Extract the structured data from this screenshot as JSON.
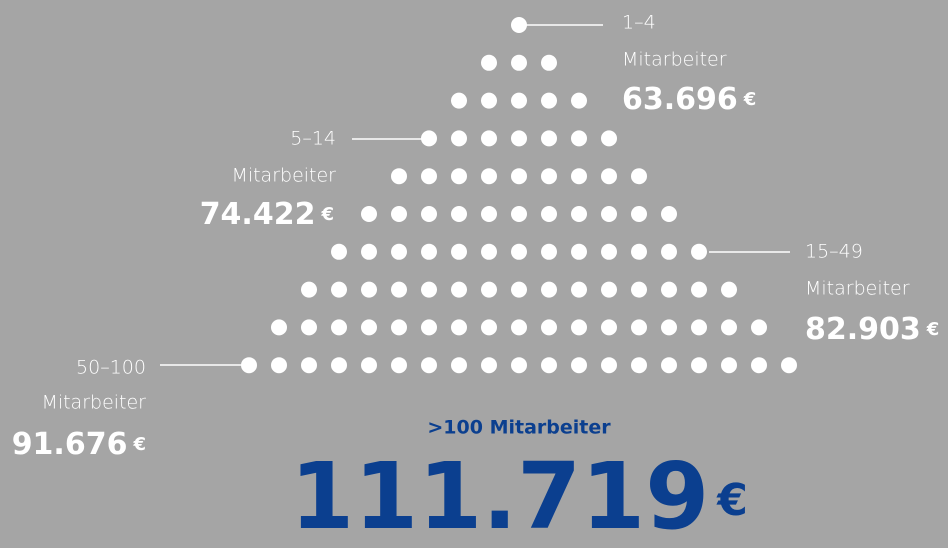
{
  "groups": [
    {
      "range": "1–4",
      "unit": "Mitarbeiter",
      "value": "63.696",
      "currency": "€"
    },
    {
      "range": "5–14",
      "unit": "Mitarbeiter",
      "value": "74.422",
      "currency": "€"
    },
    {
      "range": "15–49",
      "unit": "Mitarbeiter",
      "value": "82.903",
      "currency": "€"
    },
    {
      "range": "50–100",
      "unit": "Mitarbeiter",
      "value": "91.676",
      "currency": "€"
    }
  ],
  "highlight": {
    "label": ">100 Mitarbeiter",
    "value": "111.719",
    "currency": "€"
  }
}
